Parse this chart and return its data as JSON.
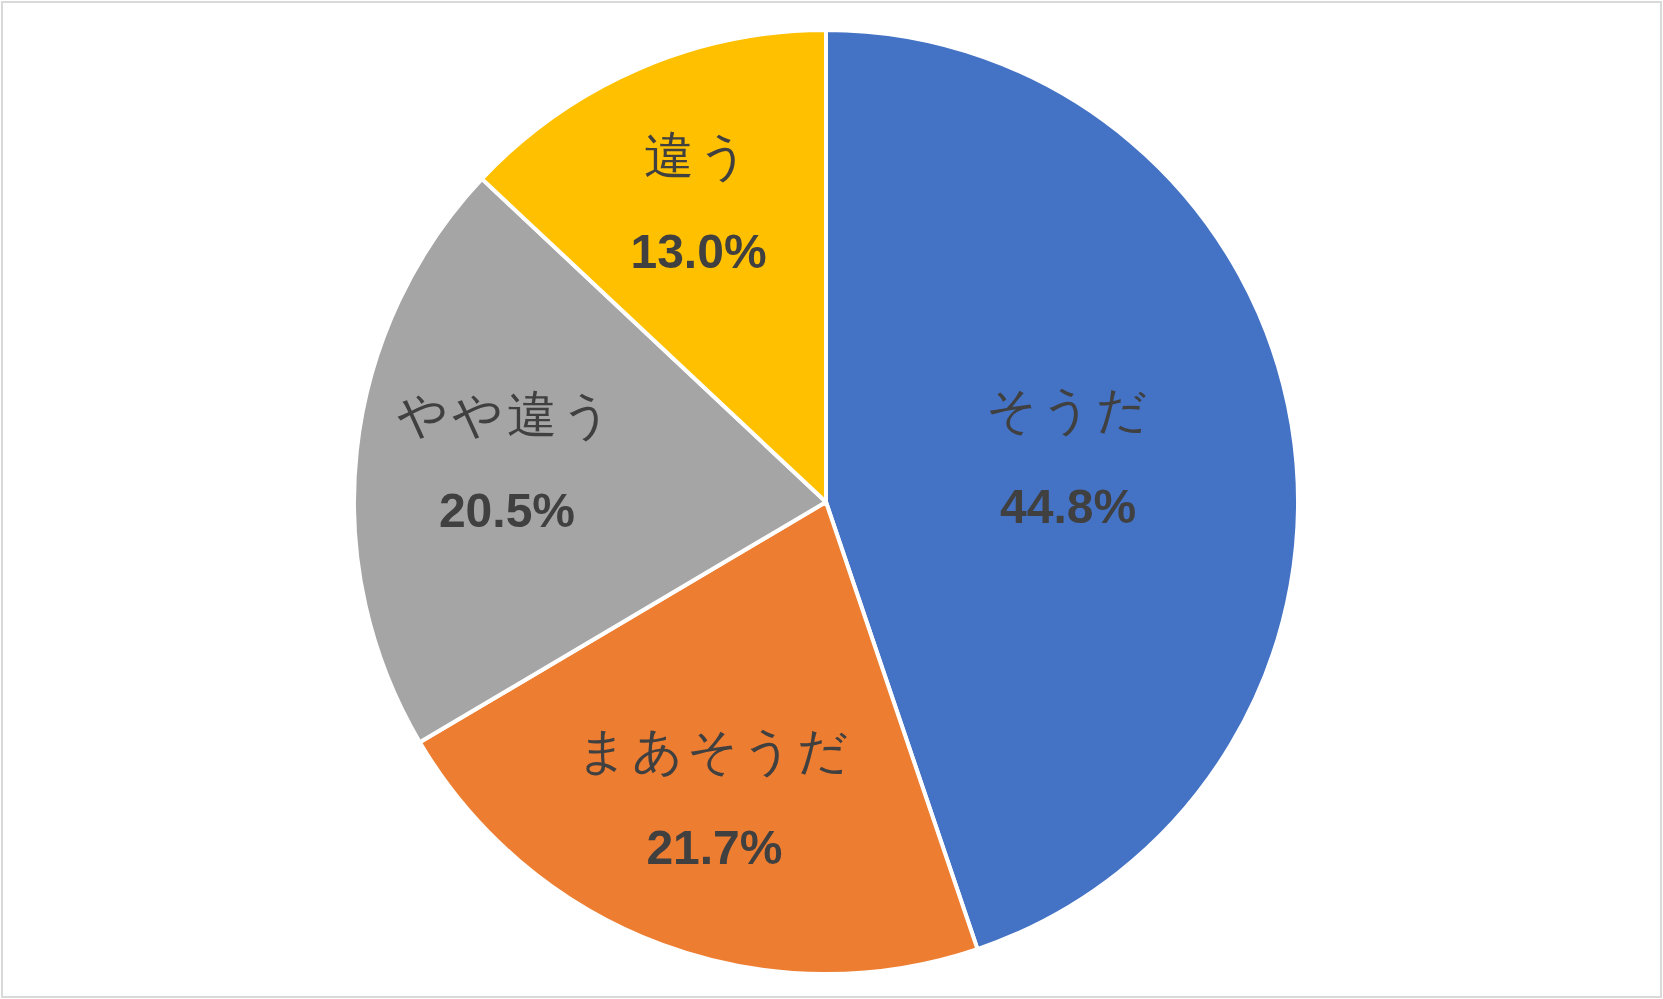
{
  "chart_data": {
    "type": "pie",
    "categories": [
      "そうだ",
      "まあそうだ",
      "やや違う",
      "違う"
    ],
    "values": [
      44.8,
      21.7,
      20.5,
      13.0
    ],
    "colors": [
      "#4472c4",
      "#ed7d31",
      "#a5a5a5",
      "#ffc000"
    ],
    "value_labels": [
      "44.8%",
      "21.7%",
      "20.5%",
      "13.0%"
    ]
  }
}
